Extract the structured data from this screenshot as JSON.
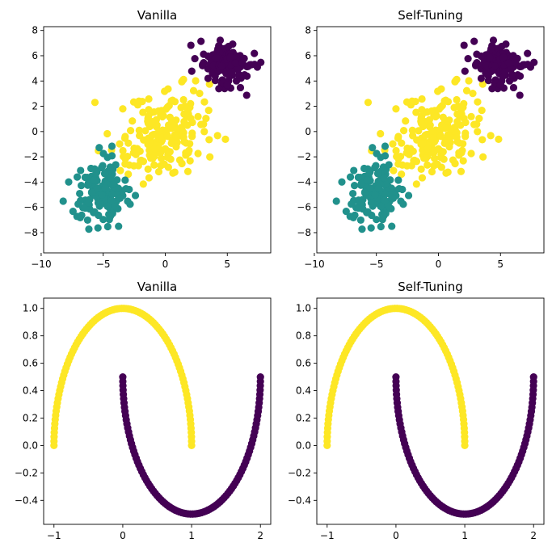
{
  "figure": {
    "colors": {
      "purple": "#440154",
      "teal": "#21918c",
      "yellow": "#fde725"
    }
  },
  "chart_data": [
    {
      "type": "scatter",
      "title": "Vanilla",
      "dataset": "blobs",
      "xlim": [
        -9.8,
        8.5
      ],
      "ylim": [
        -9.6,
        8.3
      ],
      "xticks": [
        -10,
        -5,
        0,
        5
      ],
      "yticks": [
        -8,
        -6,
        -4,
        -2,
        0,
        2,
        4,
        6,
        8
      ],
      "clusters": [
        {
          "color": "#440154",
          "center": [
            5.0,
            5.2
          ],
          "spread": [
            0.95,
            0.95
          ],
          "count": 150
        },
        {
          "color": "#21918c",
          "center": [
            -5.2,
            -4.8
          ],
          "spread": [
            1.05,
            1.2
          ],
          "count": 140
        },
        {
          "color": "#fde725",
          "center": [
            -0.4,
            -0.5
          ],
          "spread": [
            1.9,
            1.8
          ],
          "count": 190
        }
      ]
    },
    {
      "type": "scatter",
      "title": "Self-Tuning",
      "dataset": "blobs",
      "xlim": [
        -9.8,
        8.5
      ],
      "ylim": [
        -9.6,
        8.3
      ],
      "xticks": [
        -10,
        -5,
        0,
        5
      ],
      "yticks": [
        -8,
        -6,
        -4,
        -2,
        0,
        2,
        4,
        6,
        8
      ],
      "clusters": [
        {
          "color": "#440154",
          "center": [
            5.0,
            5.2
          ],
          "spread": [
            0.95,
            0.95
          ],
          "count": 150
        },
        {
          "color": "#21918c",
          "center": [
            -5.2,
            -4.8
          ],
          "spread": [
            1.05,
            1.2
          ],
          "count": 140
        },
        {
          "color": "#fde725",
          "center": [
            -0.4,
            -0.5
          ],
          "spread": [
            1.9,
            1.8
          ],
          "count": 190
        }
      ]
    },
    {
      "type": "scatter",
      "title": "Vanilla",
      "dataset": "moons",
      "xlim": [
        -1.15,
        2.15
      ],
      "ylim": [
        -0.575,
        1.075
      ],
      "xticks": [
        -1,
        0,
        1,
        2
      ],
      "yticks": [
        -0.4,
        -0.2,
        0.0,
        0.2,
        0.4,
        0.6,
        0.8,
        1.0
      ],
      "moons": [
        {
          "color": "#fde725",
          "arc": "upper",
          "center": [
            0,
            0
          ],
          "radius": 1,
          "points": 100
        },
        {
          "color": "#440154",
          "arc": "lower",
          "center": [
            1,
            0.5
          ],
          "radius": 1,
          "points": 100
        }
      ]
    },
    {
      "type": "scatter",
      "title": "Self-Tuning",
      "dataset": "moons",
      "xlim": [
        -1.15,
        2.15
      ],
      "ylim": [
        -0.575,
        1.075
      ],
      "xticks": [
        -1,
        0,
        1,
        2
      ],
      "yticks": [
        -0.4,
        -0.2,
        0.0,
        0.2,
        0.4,
        0.6,
        0.8,
        1.0
      ],
      "moons": [
        {
          "color": "#fde725",
          "arc": "upper",
          "center": [
            0,
            0
          ],
          "radius": 1,
          "points": 100
        },
        {
          "color": "#440154",
          "arc": "lower",
          "center": [
            1,
            0.5
          ],
          "radius": 1,
          "points": 100
        }
      ]
    }
  ]
}
